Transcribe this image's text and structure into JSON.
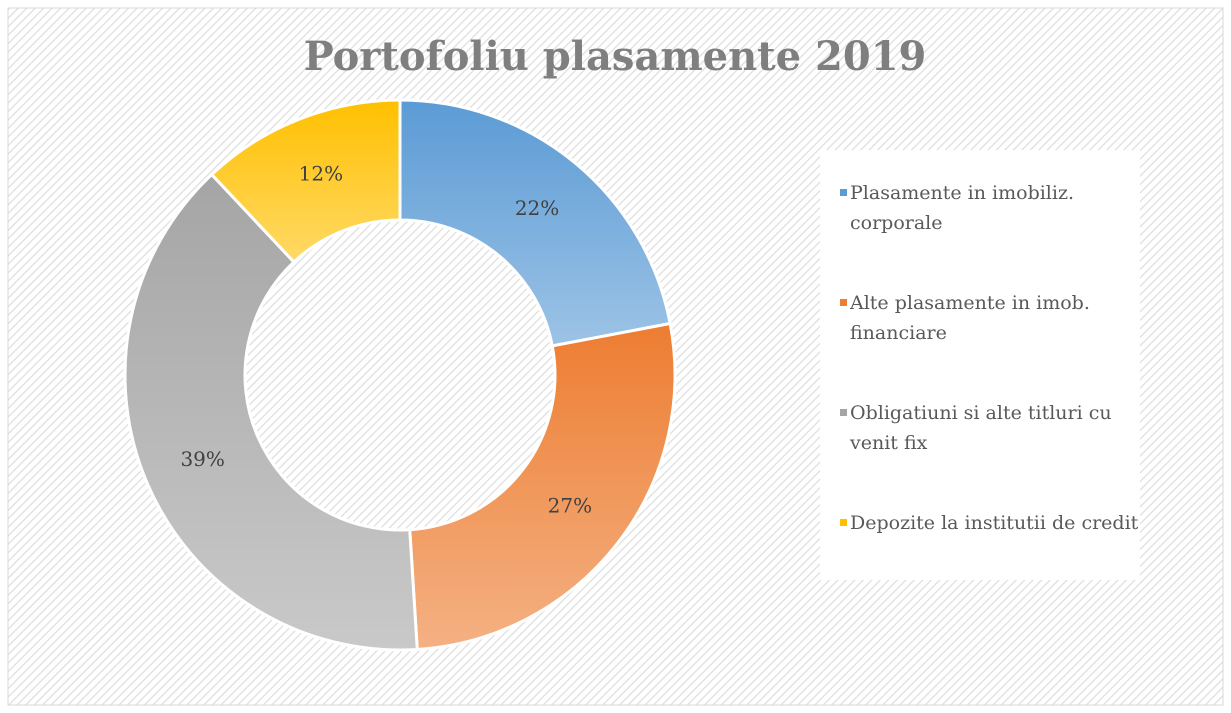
{
  "chart_data": {
    "type": "donut",
    "title": "Portofoliu plasamente 2019",
    "categories": [
      "Plasamente in imobiliz. corporale",
      "Alte plasamente in imob. financiare",
      "Obligatiuni si alte titluri cu venit fix",
      "Depozite la institutii de credit"
    ],
    "values": [
      22,
      27,
      39,
      12
    ],
    "value_labels": [
      "22%",
      "27%",
      "39%",
      "12%"
    ],
    "colors": [
      "#5b9bd5",
      "#ed7d31",
      "#a5a5a5",
      "#ffc000"
    ],
    "legend": "right"
  }
}
